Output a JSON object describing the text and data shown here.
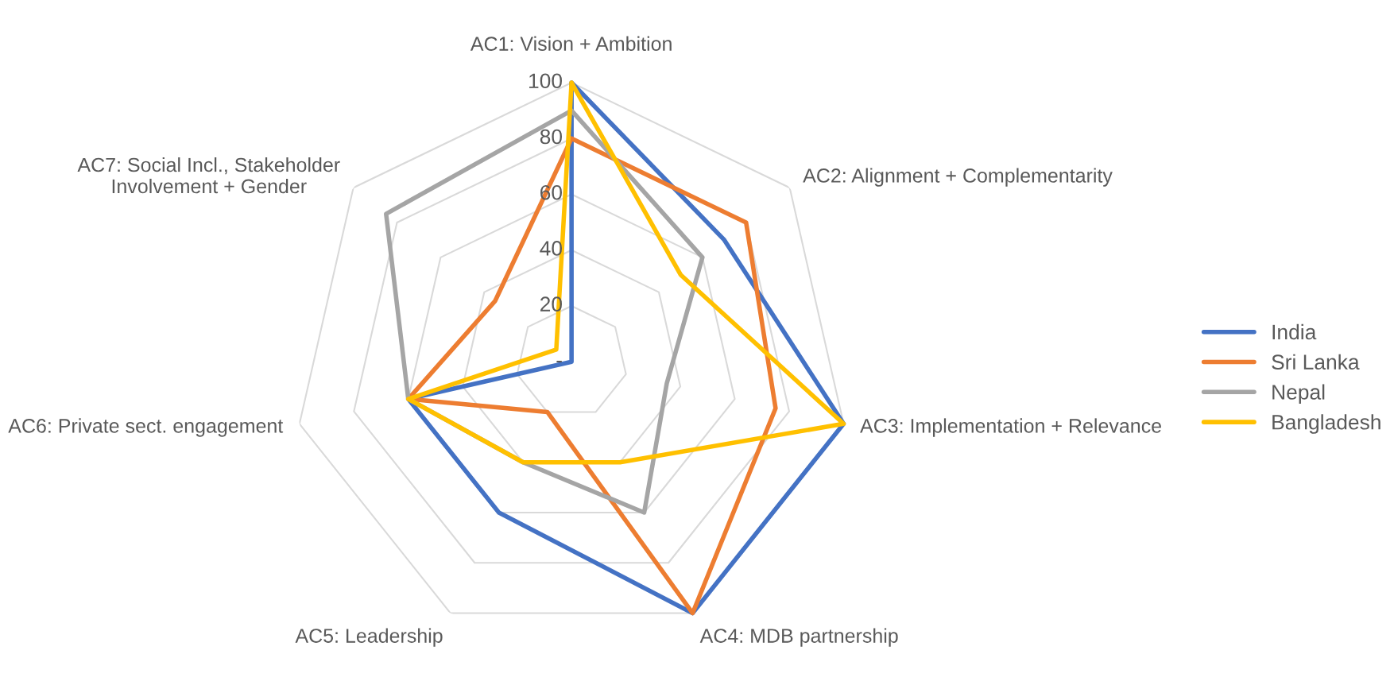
{
  "chart_data": {
    "type": "radar",
    "categories": [
      "AC1: Vision + Ambition",
      "AC2: Alignment + Complementarity",
      "AC3: Implementation + Relevance",
      "AC4: MDB partnership",
      "AC5: Leadership",
      "AC6: Private sect. engagement",
      "AC7: Social Incl., Stakeholder\nInvolvement + Gender"
    ],
    "series": [
      {
        "name": "India",
        "color": "#4472c4",
        "values": [
          100,
          70,
          100,
          100,
          60,
          60,
          0
        ]
      },
      {
        "name": "Sri Lanka",
        "color": "#ed7d31",
        "values": [
          80,
          80,
          75,
          100,
          20,
          60,
          35
        ]
      },
      {
        "name": "Nepal",
        "color": "#a5a5a5",
        "values": [
          90,
          60,
          35,
          60,
          40,
          60,
          85
        ]
      },
      {
        "name": "Bangladesh",
        "color": "#ffc000",
        "values": [
          100,
          50,
          100,
          40,
          40,
          60,
          7
        ]
      }
    ],
    "ylim": [
      0,
      100
    ],
    "yticks": [
      {
        "value": 0,
        "label": "-"
      },
      20,
      40,
      60,
      80,
      100
    ],
    "grid": true,
    "legend": "right",
    "marker": "none",
    "line_style": "solid"
  }
}
